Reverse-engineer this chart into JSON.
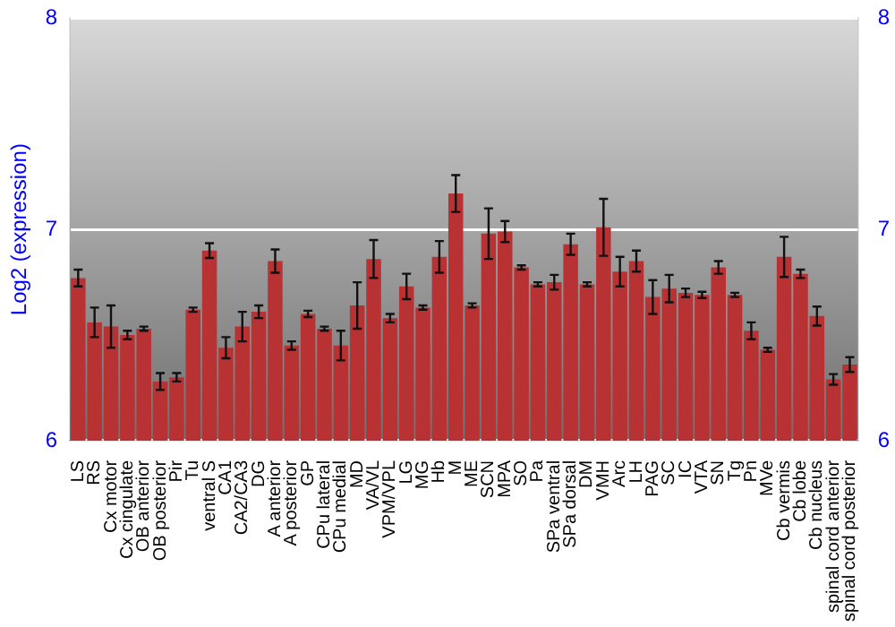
{
  "chart_data": {
    "type": "bar",
    "ylabel": "Log2 (expression)",
    "categories": [
      "LS",
      "RS",
      "Cx motor",
      "Cx cingulate",
      "OB anterior",
      "OB posterior",
      "Pir",
      "Tu",
      "ventral S",
      "CA1",
      "CA2/CA3",
      "DG",
      "A anterior",
      "A posterior",
      "GP",
      "CPu lateral",
      "CPu medial",
      "MD",
      "VA/VL",
      "VPM/VPL",
      "LG",
      "MG",
      "Hb",
      "M",
      "ME",
      "SCN",
      "MPA",
      "SO",
      "Pa",
      "SPa ventral",
      "SPa dorsal",
      "DM",
      "VMH",
      "Arc",
      "LH",
      "PAG",
      "SC",
      "IC",
      "VTA",
      "SN",
      "Tg",
      "Pn",
      "MVe",
      "Cb vermis",
      "Cb lobe",
      "Cb nucleus",
      "spinal cord anterior",
      "spinal cord posterior"
    ],
    "values": [
      6.77,
      6.56,
      6.54,
      6.5,
      6.53,
      6.28,
      6.3,
      6.62,
      6.9,
      6.44,
      6.54,
      6.61,
      6.85,
      6.45,
      6.6,
      6.53,
      6.45,
      6.64,
      6.86,
      6.58,
      6.73,
      6.63,
      6.87,
      7.17,
      6.64,
      6.98,
      6.99,
      6.82,
      6.74,
      6.75,
      6.93,
      6.74,
      7.01,
      6.8,
      6.85,
      6.68,
      6.72,
      6.7,
      6.69,
      6.82,
      6.69,
      6.52,
      6.43,
      6.87,
      6.79,
      6.59,
      6.29,
      6.36
    ],
    "errors": [
      0.04,
      0.07,
      0.1,
      0.02,
      0.01,
      0.04,
      0.02,
      0.01,
      0.035,
      0.05,
      0.07,
      0.03,
      0.055,
      0.02,
      0.015,
      0.01,
      0.07,
      0.11,
      0.09,
      0.02,
      0.06,
      0.01,
      0.075,
      0.087,
      0.01,
      0.12,
      0.05,
      0.01,
      0.01,
      0.035,
      0.05,
      0.01,
      0.135,
      0.07,
      0.05,
      0.08,
      0.065,
      0.02,
      0.015,
      0.03,
      0.01,
      0.04,
      0.01,
      0.095,
      0.02,
      0.045,
      0.025,
      0.035
    ],
    "color": "#b83234",
    "ylim": [
      6,
      8
    ],
    "yticks": [
      6,
      7,
      8
    ],
    "y2lim": [
      6,
      8
    ],
    "y2ticks": [
      6,
      7,
      8
    ],
    "grid": "y"
  }
}
